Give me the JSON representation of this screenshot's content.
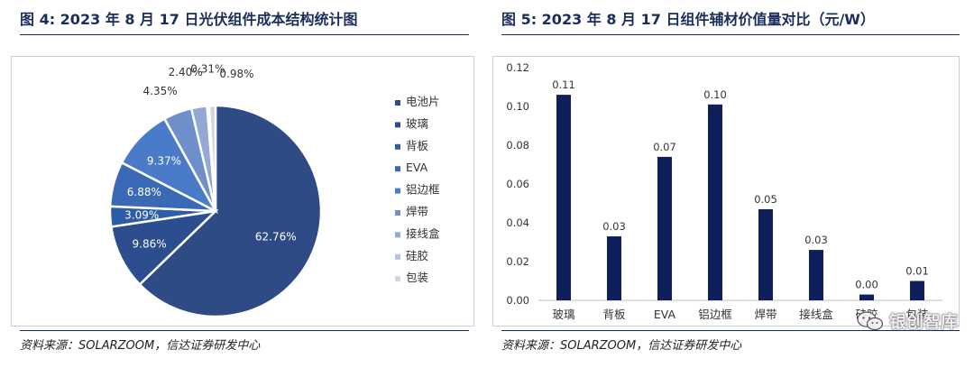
{
  "left": {
    "title": "图 4: 2023 年 8 月 17 日光伏组件成本结构统计图",
    "source": "资料来源：SOLARZOOM，信达证券研发中心"
  },
  "right": {
    "title": "图 5: 2023 年 8 月 17 日组件辅材价值量对比（元/W）",
    "source": "资料来源：SOLARZOOM，信达证券研发中心"
  },
  "watermark": {
    "text": "银创智库",
    "icon": "wechat-icon"
  },
  "chart_data": [
    {
      "type": "pie",
      "labels": [
        "电池片",
        "玻璃",
        "背板",
        "EVA",
        "铝边框",
        "焊带",
        "接线盒",
        "硅胶",
        "包装"
      ],
      "values": [
        62.76,
        9.86,
        3.09,
        6.88,
        9.37,
        4.35,
        2.4,
        0.31,
        0.98
      ],
      "value_labels": [
        "62.76%",
        "9.86%",
        "3.09%",
        "6.88%",
        "9.37%",
        "4.35%",
        "2.40%",
        "0.31%",
        "0.98%"
      ],
      "colors": [
        "#2f4b86",
        "#2c4e8f",
        "#2f5ca6",
        "#3a69b6",
        "#4a7bc8",
        "#6f8fcb",
        "#94a8d6",
        "#b4c1e0",
        "#cfd5e6"
      ],
      "legend_position": "right"
    },
    {
      "type": "bar",
      "categories": [
        "玻璃",
        "背板",
        "EVA",
        "铝边框",
        "焊带",
        "接线盒",
        "硅胶",
        "包装"
      ],
      "values": [
        0.106,
        0.033,
        0.074,
        0.101,
        0.047,
        0.026,
        0.003,
        0.01
      ],
      "value_labels": [
        "0.11",
        "0.03",
        "0.07",
        "0.10",
        "0.05",
        "0.03",
        "0.00",
        "0.01"
      ],
      "yticks": [
        "0.00",
        "0.02",
        "0.04",
        "0.06",
        "0.08",
        "0.10",
        "0.12"
      ],
      "ylim": [
        0,
        0.12
      ],
      "color": "#0e1f5b",
      "grid": false
    }
  ]
}
